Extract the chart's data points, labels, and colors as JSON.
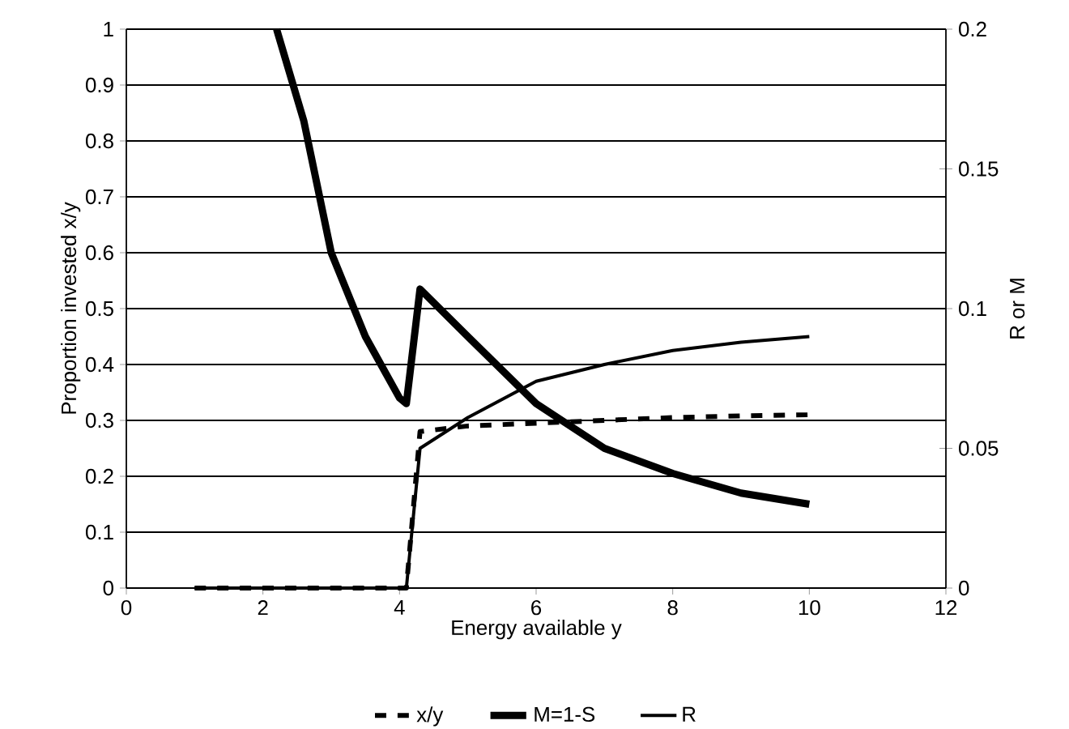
{
  "chart_data": {
    "type": "line",
    "xlabel": "Energy available y",
    "ylabel": "Proportion invested x/y",
    "y2label": "R or M",
    "series": [
      {
        "name": "x/y",
        "color": "#000000",
        "line_style": "dashed",
        "x": [
          1,
          4.1,
          4.3,
          5,
          6,
          7,
          8,
          9,
          10
        ],
        "values": [
          0,
          0,
          0.28,
          0.29,
          0.295,
          0.3,
          0.305,
          0.308,
          0.31
        ]
      },
      {
        "name": "M=1-S",
        "color": "#000000",
        "line_style": "solid",
        "axis": "y2",
        "x": [
          2.2,
          2.6,
          3,
          3.5,
          4,
          4.1,
          4.3,
          5,
          6,
          7,
          8,
          9,
          10
        ],
        "values": [
          0.2,
          0.167,
          0.12,
          0.09,
          0.068,
          0.066,
          0.107,
          0.09,
          0.066,
          0.05,
          0.041,
          0.034,
          0.03
        ]
      },
      {
        "name": "R",
        "color": "#000000",
        "line_style": "solid",
        "axis": "y2",
        "x": [
          1,
          4.1,
          4.3,
          5,
          6,
          7,
          8,
          9,
          10
        ],
        "values": [
          0,
          0,
          0.05,
          0.061,
          0.074,
          0.08,
          0.085,
          0.088,
          0.09
        ]
      }
    ],
    "xlim": [
      0,
      12
    ],
    "xticks": [
      0,
      2,
      4,
      6,
      8,
      10,
      12
    ],
    "ylim": [
      0,
      1
    ],
    "yticks": [
      0,
      0.1,
      0.2,
      0.3,
      0.4,
      0.5,
      0.6,
      0.7,
      0.8,
      0.9,
      1
    ],
    "y2lim": [
      0,
      0.2
    ],
    "y2ticks": [
      0,
      0.05,
      0.1,
      0.15,
      0.2
    ],
    "grid": "y",
    "legend": "bottom",
    "marker": "none"
  }
}
